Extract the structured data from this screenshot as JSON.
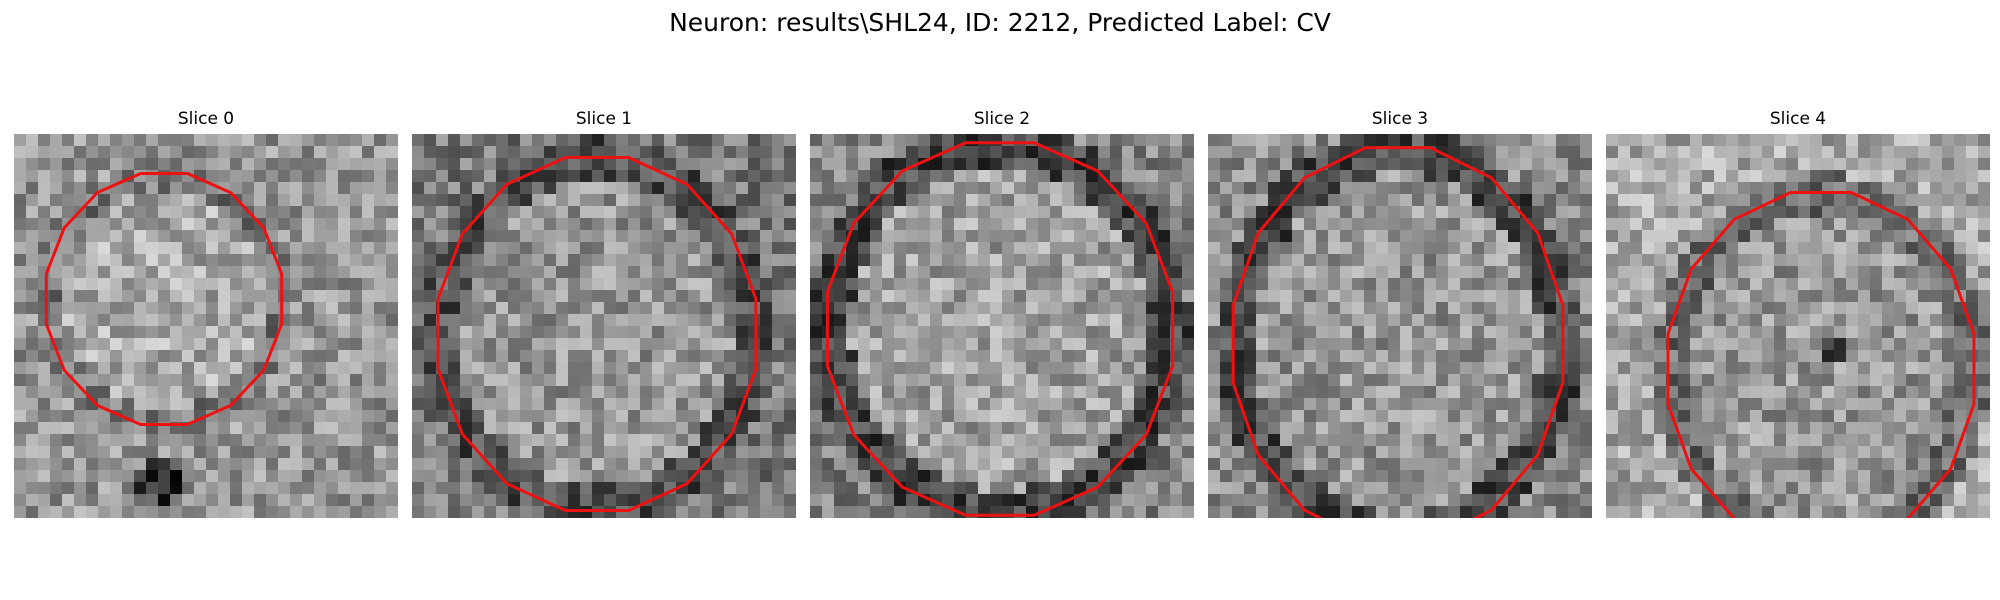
{
  "figure": {
    "title": "Neuron: results\\SHL24, ID: 2212, Predicted Label: CV"
  },
  "slices": [
    {
      "title": "Slice 0"
    },
    {
      "title": "Slice 1"
    },
    {
      "title": "Slice 2"
    },
    {
      "title": "Slice 3"
    },
    {
      "title": "Slice 4"
    }
  ],
  "colors": {
    "contour": "#ee1111"
  }
}
